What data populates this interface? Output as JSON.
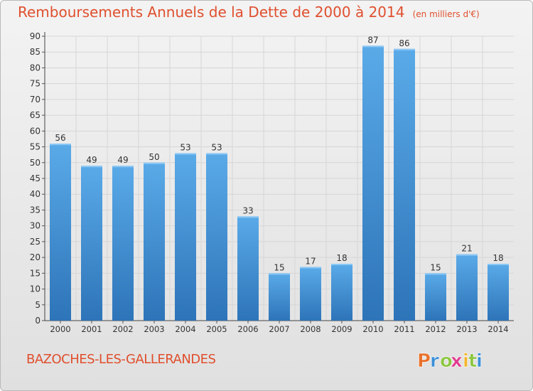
{
  "chart_data": {
    "type": "bar",
    "title": "Remboursements Annuels de la Dette de 2000 à 2014",
    "subtitle": "(en milliers d'€)",
    "categories": [
      "2000",
      "2001",
      "2002",
      "2003",
      "2004",
      "2005",
      "2006",
      "2007",
      "2008",
      "2009",
      "2010",
      "2011",
      "2012",
      "2013",
      "2014"
    ],
    "values": [
      56,
      49,
      49,
      50,
      53,
      53,
      33,
      15,
      17,
      18,
      87,
      86,
      15,
      21,
      18
    ],
    "ylim": [
      0,
      90
    ],
    "yticks": [
      0,
      5,
      10,
      15,
      20,
      25,
      30,
      35,
      40,
      45,
      50,
      55,
      60,
      65,
      70,
      75,
      80,
      85,
      90
    ],
    "grid": true,
    "bar_color": "#4f9ee0",
    "bar_color_dark": "#2d74b8"
  },
  "footer": {
    "commune": "BAZOCHES-LES-GALLERANDES",
    "logo_text": "Proxiti",
    "logo_colors": [
      "#e8702a",
      "#3b8fd6",
      "#8cc63f",
      "#e03a8f",
      "#f2b42a",
      "#8cc63f",
      "#3b8fd6"
    ]
  },
  "colors": {
    "accent": "#e04f2e",
    "grid": "#d6d6d6"
  }
}
